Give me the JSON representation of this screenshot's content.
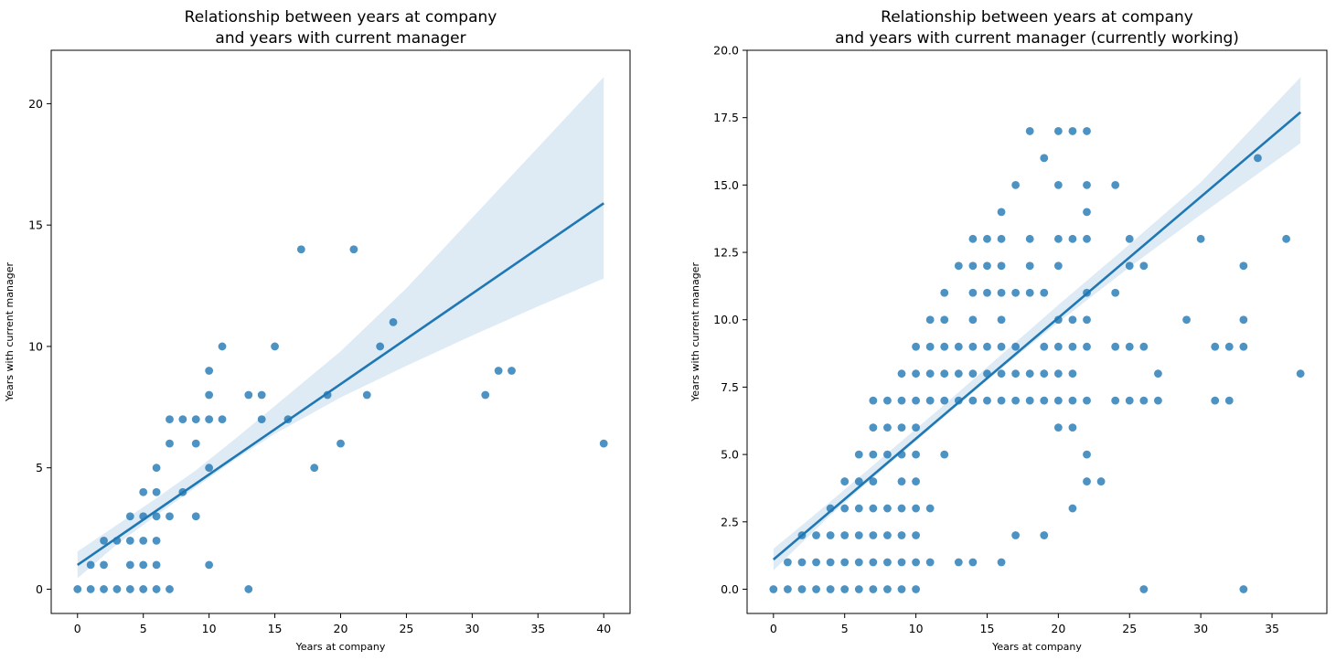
{
  "chart_data": [
    {
      "type": "scatter",
      "title": [
        "Relationship between years at company",
        "and years with current manager"
      ],
      "xlabel": "Years at company",
      "ylabel": "Years with current manager",
      "xlim": [
        -2,
        42
      ],
      "ylim": [
        -1.0,
        22.2
      ],
      "xticks": [
        0,
        5,
        10,
        15,
        20,
        25,
        30,
        35,
        40
      ],
      "xtick_labels": [
        "0",
        "5",
        "10",
        "15",
        "20",
        "25",
        "30",
        "35",
        "40"
      ],
      "yticks": [
        0,
        5,
        10,
        15,
        20
      ],
      "ytick_labels": [
        "0",
        "5",
        "10",
        "15",
        "20"
      ],
      "color": "#1f77b4",
      "points": [
        [
          0,
          0
        ],
        [
          1,
          0
        ],
        [
          1,
          1
        ],
        [
          2,
          0
        ],
        [
          2,
          1
        ],
        [
          2,
          2
        ],
        [
          3,
          0
        ],
        [
          3,
          2
        ],
        [
          4,
          0
        ],
        [
          4,
          1
        ],
        [
          4,
          2
        ],
        [
          4,
          3
        ],
        [
          5,
          0
        ],
        [
          5,
          1
        ],
        [
          5,
          2
        ],
        [
          5,
          3
        ],
        [
          5,
          4
        ],
        [
          6,
          0
        ],
        [
          6,
          1
        ],
        [
          6,
          2
        ],
        [
          6,
          3
        ],
        [
          6,
          4
        ],
        [
          6,
          5
        ],
        [
          7,
          0
        ],
        [
          7,
          3
        ],
        [
          7,
          6
        ],
        [
          7,
          7
        ],
        [
          8,
          4
        ],
        [
          8,
          7
        ],
        [
          9,
          3
        ],
        [
          9,
          6
        ],
        [
          9,
          7
        ],
        [
          10,
          1
        ],
        [
          10,
          5
        ],
        [
          10,
          7
        ],
        [
          10,
          8
        ],
        [
          10,
          9
        ],
        [
          11,
          7
        ],
        [
          11,
          10
        ],
        [
          13,
          0
        ],
        [
          13,
          8
        ],
        [
          14,
          7
        ],
        [
          14,
          8
        ],
        [
          15,
          10
        ],
        [
          16,
          7
        ],
        [
          17,
          14
        ],
        [
          18,
          5
        ],
        [
          19,
          8
        ],
        [
          20,
          6
        ],
        [
          21,
          14
        ],
        [
          22,
          8
        ],
        [
          23,
          10
        ],
        [
          24,
          11
        ],
        [
          31,
          8
        ],
        [
          32,
          9
        ],
        [
          33,
          9
        ],
        [
          40,
          6
        ]
      ],
      "regression": {
        "x": [
          0,
          40
        ],
        "y": [
          1.0,
          15.9
        ]
      },
      "ci_band": {
        "x": [
          0,
          3,
          6,
          9,
          12,
          15,
          20,
          25,
          30,
          35,
          40
        ],
        "lower": [
          0.45,
          1.85,
          3.05,
          4.2,
          5.35,
          6.4,
          7.9,
          9.2,
          10.45,
          11.65,
          12.8
        ],
        "upper": [
          1.55,
          2.65,
          3.75,
          4.9,
          6.2,
          7.55,
          9.8,
          12.4,
          15.3,
          18.2,
          21.1
        ]
      }
    },
    {
      "type": "scatter",
      "title": [
        "Relationship between years at company",
        "and years with current manager (currently working)"
      ],
      "xlabel": "Years at company",
      "ylabel": "Years with current manager",
      "xlim": [
        -1.85,
        38.85
      ],
      "ylim": [
        -0.9,
        20.0
      ],
      "xticks": [
        0,
        5,
        10,
        15,
        20,
        25,
        30,
        35
      ],
      "xtick_labels": [
        "0",
        "5",
        "10",
        "15",
        "20",
        "25",
        "30",
        "35"
      ],
      "yticks": [
        0,
        2.5,
        5,
        7.5,
        10,
        12.5,
        15,
        17.5,
        20
      ],
      "ytick_labels": [
        "0.0",
        "2.5",
        "5.0",
        "7.5",
        "10.0",
        "12.5",
        "15.0",
        "17.5",
        "20.0"
      ],
      "color": "#1f77b4",
      "points": [
        [
          0,
          0
        ],
        [
          1,
          0
        ],
        [
          1,
          1
        ],
        [
          2,
          0
        ],
        [
          2,
          1
        ],
        [
          2,
          2
        ],
        [
          3,
          0
        ],
        [
          3,
          1
        ],
        [
          3,
          2
        ],
        [
          4,
          0
        ],
        [
          4,
          1
        ],
        [
          4,
          2
        ],
        [
          4,
          3
        ],
        [
          5,
          0
        ],
        [
          5,
          1
        ],
        [
          5,
          2
        ],
        [
          5,
          3
        ],
        [
          5,
          4
        ],
        [
          6,
          0
        ],
        [
          6,
          1
        ],
        [
          6,
          2
        ],
        [
          6,
          3
        ],
        [
          6,
          4
        ],
        [
          6,
          5
        ],
        [
          7,
          0
        ],
        [
          7,
          1
        ],
        [
          7,
          2
        ],
        [
          7,
          3
        ],
        [
          7,
          4
        ],
        [
          7,
          5
        ],
        [
          7,
          6
        ],
        [
          7,
          7
        ],
        [
          8,
          0
        ],
        [
          8,
          1
        ],
        [
          8,
          2
        ],
        [
          8,
          3
        ],
        [
          8,
          5
        ],
        [
          8,
          6
        ],
        [
          8,
          7
        ],
        [
          9,
          0
        ],
        [
          9,
          1
        ],
        [
          9,
          2
        ],
        [
          9,
          3
        ],
        [
          9,
          4
        ],
        [
          9,
          5
        ],
        [
          9,
          6
        ],
        [
          9,
          7
        ],
        [
          9,
          8
        ],
        [
          10,
          0
        ],
        [
          10,
          1
        ],
        [
          10,
          2
        ],
        [
          10,
          3
        ],
        [
          10,
          4
        ],
        [
          10,
          5
        ],
        [
          10,
          6
        ],
        [
          10,
          7
        ],
        [
          10,
          8
        ],
        [
          10,
          9
        ],
        [
          11,
          1
        ],
        [
          11,
          3
        ],
        [
          11,
          7
        ],
        [
          11,
          8
        ],
        [
          11,
          9
        ],
        [
          11,
          10
        ],
        [
          12,
          5
        ],
        [
          12,
          7
        ],
        [
          12,
          8
        ],
        [
          12,
          9
        ],
        [
          12,
          10
        ],
        [
          12,
          11
        ],
        [
          13,
          1
        ],
        [
          13,
          7
        ],
        [
          13,
          8
        ],
        [
          13,
          9
        ],
        [
          13,
          12
        ],
        [
          14,
          1
        ],
        [
          14,
          7
        ],
        [
          14,
          8
        ],
        [
          14,
          9
        ],
        [
          14,
          10
        ],
        [
          14,
          11
        ],
        [
          14,
          12
        ],
        [
          14,
          13
        ],
        [
          15,
          7
        ],
        [
          15,
          8
        ],
        [
          15,
          9
        ],
        [
          15,
          11
        ],
        [
          15,
          12
        ],
        [
          15,
          13
        ],
        [
          16,
          1
        ],
        [
          16,
          7
        ],
        [
          16,
          8
        ],
        [
          16,
          9
        ],
        [
          16,
          10
        ],
        [
          16,
          11
        ],
        [
          16,
          12
        ],
        [
          16,
          13
        ],
        [
          16,
          14
        ],
        [
          17,
          2
        ],
        [
          17,
          7
        ],
        [
          17,
          8
        ],
        [
          17,
          9
        ],
        [
          17,
          11
        ],
        [
          17,
          15
        ],
        [
          18,
          7
        ],
        [
          18,
          8
        ],
        [
          18,
          11
        ],
        [
          18,
          12
        ],
        [
          18,
          13
        ],
        [
          18,
          17
        ],
        [
          19,
          2
        ],
        [
          19,
          7
        ],
        [
          19,
          8
        ],
        [
          19,
          9
        ],
        [
          19,
          11
        ],
        [
          19,
          16
        ],
        [
          20,
          6
        ],
        [
          20,
          7
        ],
        [
          20,
          8
        ],
        [
          20,
          9
        ],
        [
          20,
          10
        ],
        [
          20,
          12
        ],
        [
          20,
          13
        ],
        [
          20,
          15
        ],
        [
          20,
          17
        ],
        [
          21,
          3
        ],
        [
          21,
          6
        ],
        [
          21,
          7
        ],
        [
          21,
          8
        ],
        [
          21,
          9
        ],
        [
          21,
          10
        ],
        [
          21,
          13
        ],
        [
          21,
          17
        ],
        [
          22,
          4
        ],
        [
          22,
          5
        ],
        [
          22,
          7
        ],
        [
          22,
          9
        ],
        [
          22,
          10
        ],
        [
          22,
          11
        ],
        [
          22,
          13
        ],
        [
          22,
          14
        ],
        [
          22,
          15
        ],
        [
          22,
          17
        ],
        [
          23,
          4
        ],
        [
          24,
          7
        ],
        [
          24,
          9
        ],
        [
          24,
          11
        ],
        [
          24,
          15
        ],
        [
          25,
          7
        ],
        [
          25,
          9
        ],
        [
          25,
          12
        ],
        [
          25,
          13
        ],
        [
          26,
          0
        ],
        [
          26,
          7
        ],
        [
          26,
          9
        ],
        [
          26,
          12
        ],
        [
          27,
          7
        ],
        [
          27,
          8
        ],
        [
          29,
          10
        ],
        [
          30,
          13
        ],
        [
          31,
          7
        ],
        [
          31,
          9
        ],
        [
          32,
          7
        ],
        [
          32,
          9
        ],
        [
          33,
          0
        ],
        [
          33,
          9
        ],
        [
          33,
          10
        ],
        [
          33,
          12
        ],
        [
          34,
          16
        ],
        [
          36,
          13
        ],
        [
          37,
          8
        ]
      ],
      "regression": {
        "x": [
          0,
          37
        ],
        "y": [
          1.1,
          17.7
        ]
      },
      "ci_band": {
        "x": [
          0,
          4,
          8,
          12,
          16,
          20,
          25,
          30,
          37
        ],
        "lower": [
          0.7,
          2.75,
          4.6,
          6.4,
          8.2,
          9.9,
          11.95,
          13.9,
          16.55
        ],
        "upper": [
          1.5,
          3.25,
          5.05,
          6.85,
          8.7,
          10.55,
          12.8,
          15.1,
          19.0
        ]
      }
    }
  ]
}
